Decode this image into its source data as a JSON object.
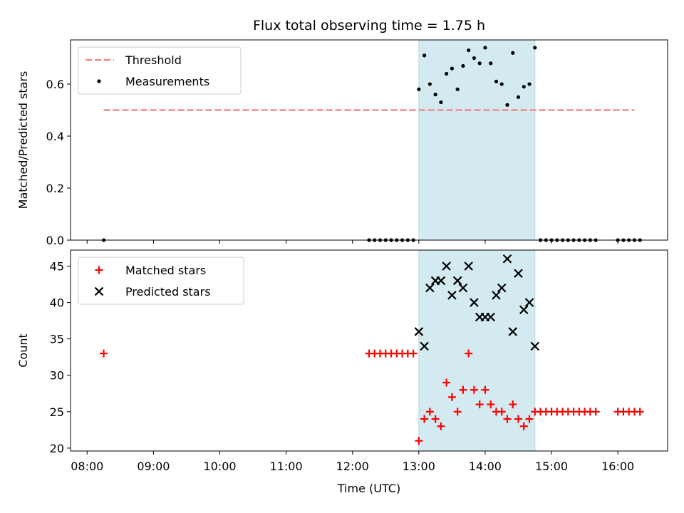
{
  "chart_data": {
    "title": "Flux total observing time = 1.75 h",
    "xlabel": "Time (UTC)",
    "x_ticks": [
      "08:00",
      "09:00",
      "10:00",
      "11:00",
      "12:00",
      "13:00",
      "14:00",
      "15:00",
      "16:00"
    ],
    "x_tick_hours": [
      8,
      9,
      10,
      11,
      12,
      13,
      14,
      15,
      16
    ],
    "xlim": [
      "07:45",
      "16:45"
    ],
    "shaded_region": {
      "start": "13:00",
      "end": "14:45",
      "color": "#d3eaf0"
    },
    "panels": [
      {
        "type": "scatter",
        "ylabel": "Matched/Predicted stars",
        "ylim": [
          0,
          0.77
        ],
        "y_ticks": [
          "0.0",
          "0.2",
          "0.4",
          "0.6"
        ],
        "y_tick_values": [
          0,
          0.2,
          0.4,
          0.6
        ],
        "legend_position": "upper-left",
        "series": [
          {
            "name": "Threshold",
            "style": "dashed-line",
            "color": "#f08080",
            "points": [
              [
                "08:15",
                0.5
              ],
              [
                "16:15",
                0.5
              ]
            ]
          },
          {
            "name": "Measurements",
            "style": "dot",
            "color": "#000000",
            "points": [
              [
                "08:15",
                0.0
              ],
              [
                "12:15",
                0.0
              ],
              [
                "12:20",
                0.0
              ],
              [
                "12:25",
                0.0
              ],
              [
                "12:30",
                0.0
              ],
              [
                "12:35",
                0.0
              ],
              [
                "12:40",
                0.0
              ],
              [
                "12:45",
                0.0
              ],
              [
                "12:50",
                0.0
              ],
              [
                "12:55",
                0.0
              ],
              [
                "13:00",
                0.58
              ],
              [
                "13:05",
                0.71
              ],
              [
                "13:10",
                0.6
              ],
              [
                "13:15",
                0.56
              ],
              [
                "13:20",
                0.53
              ],
              [
                "13:25",
                0.64
              ],
              [
                "13:30",
                0.66
              ],
              [
                "13:35",
                0.58
              ],
              [
                "13:40",
                0.67
              ],
              [
                "13:45",
                0.73
              ],
              [
                "13:50",
                0.7
              ],
              [
                "13:55",
                0.68
              ],
              [
                "14:00",
                0.74
              ],
              [
                "14:05",
                0.68
              ],
              [
                "14:10",
                0.61
              ],
              [
                "14:15",
                0.6
              ],
              [
                "14:20",
                0.52
              ],
              [
                "14:25",
                0.72
              ],
              [
                "14:30",
                0.55
              ],
              [
                "14:35",
                0.59
              ],
              [
                "14:40",
                0.6
              ],
              [
                "14:45",
                0.74
              ],
              [
                "14:50",
                0.0
              ],
              [
                "14:55",
                0.0
              ],
              [
                "15:00",
                0.0
              ],
              [
                "15:05",
                0.0
              ],
              [
                "15:10",
                0.0
              ],
              [
                "15:15",
                0.0
              ],
              [
                "15:20",
                0.0
              ],
              [
                "15:25",
                0.0
              ],
              [
                "15:30",
                0.0
              ],
              [
                "15:35",
                0.0
              ],
              [
                "15:40",
                0.0
              ],
              [
                "16:00",
                0.0
              ],
              [
                "16:05",
                0.0
              ],
              [
                "16:10",
                0.0
              ],
              [
                "16:15",
                0.0
              ],
              [
                "16:20",
                0.0
              ]
            ]
          }
        ]
      },
      {
        "type": "scatter",
        "ylabel": "Count",
        "ylim": [
          19.6,
          47.2
        ],
        "y_ticks": [
          "20",
          "25",
          "30",
          "35",
          "40",
          "45"
        ],
        "y_tick_values": [
          20,
          25,
          30,
          35,
          40,
          45
        ],
        "legend_position": "upper-left",
        "series": [
          {
            "name": "Matched stars",
            "style": "plus",
            "color": "#ff0000",
            "points": [
              [
                "08:15",
                33
              ],
              [
                "12:15",
                33
              ],
              [
                "12:20",
                33
              ],
              [
                "12:25",
                33
              ],
              [
                "12:30",
                33
              ],
              [
                "12:35",
                33
              ],
              [
                "12:40",
                33
              ],
              [
                "12:45",
                33
              ],
              [
                "12:50",
                33
              ],
              [
                "12:55",
                33
              ],
              [
                "13:00",
                21
              ],
              [
                "13:05",
                24
              ],
              [
                "13:10",
                25
              ],
              [
                "13:15",
                24
              ],
              [
                "13:20",
                23
              ],
              [
                "13:25",
                29
              ],
              [
                "13:30",
                27
              ],
              [
                "13:35",
                25
              ],
              [
                "13:40",
                28
              ],
              [
                "13:45",
                33
              ],
              [
                "13:50",
                28
              ],
              [
                "13:55",
                26
              ],
              [
                "14:00",
                28
              ],
              [
                "14:05",
                26
              ],
              [
                "14:10",
                25
              ],
              [
                "14:15",
                25
              ],
              [
                "14:20",
                24
              ],
              [
                "14:25",
                26
              ],
              [
                "14:30",
                24
              ],
              [
                "14:35",
                23
              ],
              [
                "14:40",
                24
              ],
              [
                "14:45",
                25
              ],
              [
                "14:50",
                25
              ],
              [
                "14:55",
                25
              ],
              [
                "15:00",
                25
              ],
              [
                "15:05",
                25
              ],
              [
                "15:10",
                25
              ],
              [
                "15:15",
                25
              ],
              [
                "15:20",
                25
              ],
              [
                "15:25",
                25
              ],
              [
                "15:30",
                25
              ],
              [
                "15:35",
                25
              ],
              [
                "15:40",
                25
              ],
              [
                "16:00",
                25
              ],
              [
                "16:05",
                25
              ],
              [
                "16:10",
                25
              ],
              [
                "16:15",
                25
              ],
              [
                "16:20",
                25
              ]
            ]
          },
          {
            "name": "Predicted stars",
            "style": "cross",
            "color": "#000000",
            "points": [
              [
                "13:00",
                36
              ],
              [
                "13:05",
                34
              ],
              [
                "13:10",
                42
              ],
              [
                "13:15",
                43
              ],
              [
                "13:20",
                43
              ],
              [
                "13:25",
                45
              ],
              [
                "13:30",
                41
              ],
              [
                "13:35",
                43
              ],
              [
                "13:40",
                42
              ],
              [
                "13:45",
                45
              ],
              [
                "13:50",
                40
              ],
              [
                "13:55",
                38
              ],
              [
                "14:00",
                38
              ],
              [
                "14:05",
                38
              ],
              [
                "14:10",
                41
              ],
              [
                "14:15",
                42
              ],
              [
                "14:20",
                46
              ],
              [
                "14:25",
                36
              ],
              [
                "14:30",
                44
              ],
              [
                "14:35",
                39
              ],
              [
                "14:40",
                40
              ],
              [
                "14:45",
                34
              ]
            ]
          }
        ]
      }
    ]
  }
}
